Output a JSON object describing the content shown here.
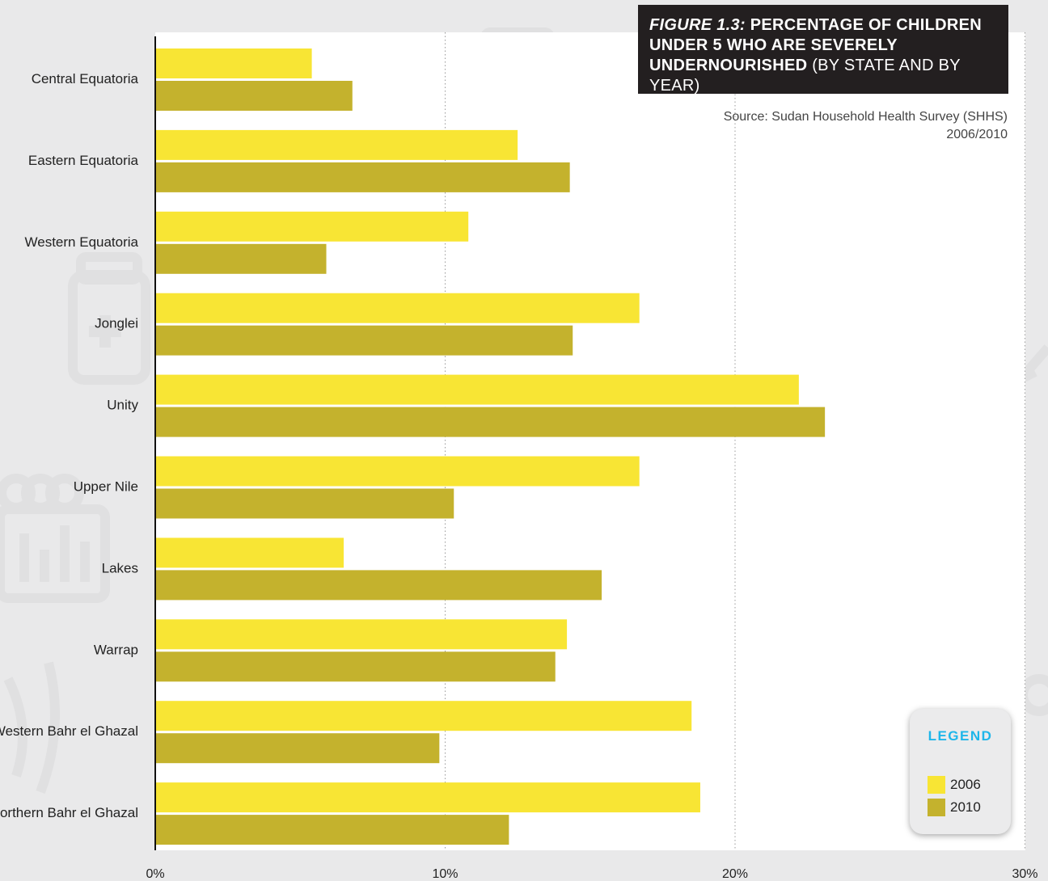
{
  "chart_data": {
    "type": "bar",
    "orientation": "horizontal",
    "title": {
      "figure_label": "FIGURE 1.3:",
      "main": "PERCENTAGE OF CHILDREN UNDER 5 WHO ARE SEVERELY UNDERNOURISHED",
      "qualifier": "(BY STATE AND BY YEAR)"
    },
    "source": "Source: Sudan Household Health Survey (SHHS) 2006/2010",
    "categories": [
      "Central Equatoria",
      "Eastern Equatoria",
      "Western Equatoria",
      "Jonglei",
      "Unity",
      "Upper Nile",
      "Lakes",
      "Warrap",
      "Western Bahr el Ghazal",
      "Northern Bahr el Ghazal"
    ],
    "series": [
      {
        "name": "2006",
        "color": "#f8e534",
        "values": [
          5.4,
          12.5,
          10.8,
          16.7,
          22.2,
          16.7,
          6.5,
          14.2,
          18.5,
          18.8
        ]
      },
      {
        "name": "2010",
        "color": "#c4b22d",
        "values": [
          6.8,
          14.3,
          5.9,
          14.4,
          23.1,
          10.3,
          15.4,
          13.8,
          9.8,
          12.2
        ]
      }
    ],
    "x_ticks": [
      "0%",
      "10%",
      "20%",
      "30%"
    ],
    "xlim": [
      0,
      30
    ],
    "gridlines": "dotted-vertical",
    "legend": {
      "title": "LEGEND",
      "position": "bottom-right",
      "title_color": "#1eb6ea"
    }
  }
}
